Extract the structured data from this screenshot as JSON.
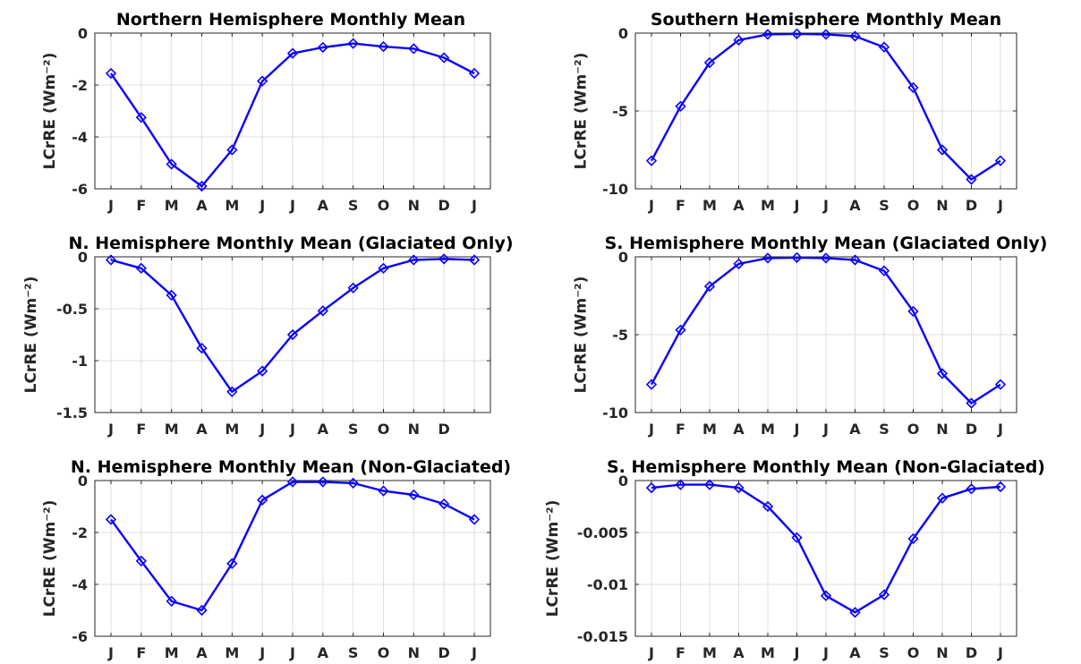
{
  "colors": {
    "series": "#0a00ff",
    "axis": "#262626",
    "grid": "#dedede"
  },
  "chart_data": [
    {
      "type": "line",
      "title": "Northern Hemisphere Monthly Mean",
      "ylabel": "LCrRE (Wm⁻²)",
      "grid": true,
      "x": [
        "J",
        "F",
        "M",
        "A",
        "M",
        "J",
        "J",
        "A",
        "S",
        "O",
        "N",
        "D",
        "J"
      ],
      "ylim": [
        -6,
        0
      ],
      "yticks": [
        0,
        -2,
        -4,
        -6
      ],
      "ytick_labels": [
        "0",
        "-2",
        "-4",
        "-6"
      ],
      "values": [
        -1.55,
        -3.25,
        -5.05,
        -5.9,
        -4.5,
        -1.85,
        -0.78,
        -0.55,
        -0.4,
        -0.52,
        -0.6,
        -0.95,
        -1.55
      ]
    },
    {
      "type": "line",
      "title": "Southern Hemisphere Monthly Mean",
      "ylabel": "LCrRE (Wm⁻²)",
      "grid": true,
      "x": [
        "J",
        "F",
        "M",
        "A",
        "M",
        "J",
        "J",
        "A",
        "S",
        "O",
        "N",
        "D",
        "J"
      ],
      "ylim": [
        -10,
        0
      ],
      "yticks": [
        0,
        -5,
        -10
      ],
      "ytick_labels": [
        "0",
        "-5",
        "-10"
      ],
      "values": [
        -8.2,
        -4.7,
        -1.9,
        -0.45,
        -0.08,
        -0.05,
        -0.08,
        -0.2,
        -0.9,
        -3.5,
        -7.5,
        -9.4,
        -8.2
      ]
    },
    {
      "type": "line",
      "title": "N. Hemisphere Monthly Mean (Glaciated Only)",
      "ylabel": "LCrRE (Wm⁻²)",
      "grid": true,
      "x": [
        "J",
        "F",
        "M",
        "A",
        "M",
        "J",
        "J",
        "A",
        "S",
        "O",
        "N",
        "D",
        ""
      ],
      "ylim": [
        -1.5,
        0
      ],
      "yticks": [
        0,
        -0.5,
        -1,
        -1.5
      ],
      "ytick_labels": [
        "0",
        "-0.5",
        "-1",
        "-1.5"
      ],
      "values": [
        -0.03,
        -0.11,
        -0.37,
        -0.88,
        -1.3,
        -1.1,
        -0.75,
        -0.52,
        -0.3,
        -0.11,
        -0.03,
        -0.02,
        -0.03
      ]
    },
    {
      "type": "line",
      "title": "S. Hemisphere Monthly Mean (Glaciated Only)",
      "ylabel": "LCrRE (Wm⁻²)",
      "grid": true,
      "x": [
        "J",
        "F",
        "M",
        "A",
        "M",
        "J",
        "J",
        "A",
        "S",
        "O",
        "N",
        "D",
        "J"
      ],
      "ylim": [
        -10,
        0
      ],
      "yticks": [
        0,
        -5,
        -10
      ],
      "ytick_labels": [
        "0",
        "-5",
        "-10"
      ],
      "values": [
        -8.2,
        -4.7,
        -1.9,
        -0.45,
        -0.08,
        -0.05,
        -0.08,
        -0.2,
        -0.9,
        -3.5,
        -7.5,
        -9.4,
        -8.2
      ]
    },
    {
      "type": "line",
      "title": "N. Hemisphere Monthly Mean (Non-Glaciated)",
      "ylabel": "LCrRE (Wm⁻²)",
      "grid": true,
      "x": [
        "J",
        "F",
        "M",
        "A",
        "M",
        "J",
        "J",
        "A",
        "S",
        "O",
        "N",
        "D",
        "J"
      ],
      "ylim": [
        -6,
        0
      ],
      "yticks": [
        0,
        -2,
        -4,
        -6
      ],
      "ytick_labels": [
        "0",
        "-2",
        "-4",
        "-6"
      ],
      "values": [
        -1.5,
        -3.1,
        -4.65,
        -5.0,
        -3.2,
        -0.75,
        -0.05,
        -0.05,
        -0.1,
        -0.4,
        -0.55,
        -0.9,
        -1.5
      ]
    },
    {
      "type": "line",
      "title": "S. Hemisphere Monthly Mean (Non-Glaciated)",
      "ylabel": "LCrRE (Wm⁻²)",
      "grid": true,
      "x": [
        "J",
        "F",
        "M",
        "A",
        "M",
        "J",
        "J",
        "A",
        "S",
        "O",
        "N",
        "D",
        "J"
      ],
      "ylim": [
        -0.015,
        0
      ],
      "yticks": [
        0,
        -0.005,
        -0.01,
        -0.015
      ],
      "ytick_labels": [
        "0",
        "-0.005",
        "-0.01",
        "-0.015"
      ],
      "values": [
        -0.0007,
        -0.0004,
        -0.0004,
        -0.0007,
        -0.0025,
        -0.0055,
        -0.0111,
        -0.0127,
        -0.011,
        -0.0056,
        -0.0017,
        -0.0008,
        -0.0006
      ]
    }
  ]
}
